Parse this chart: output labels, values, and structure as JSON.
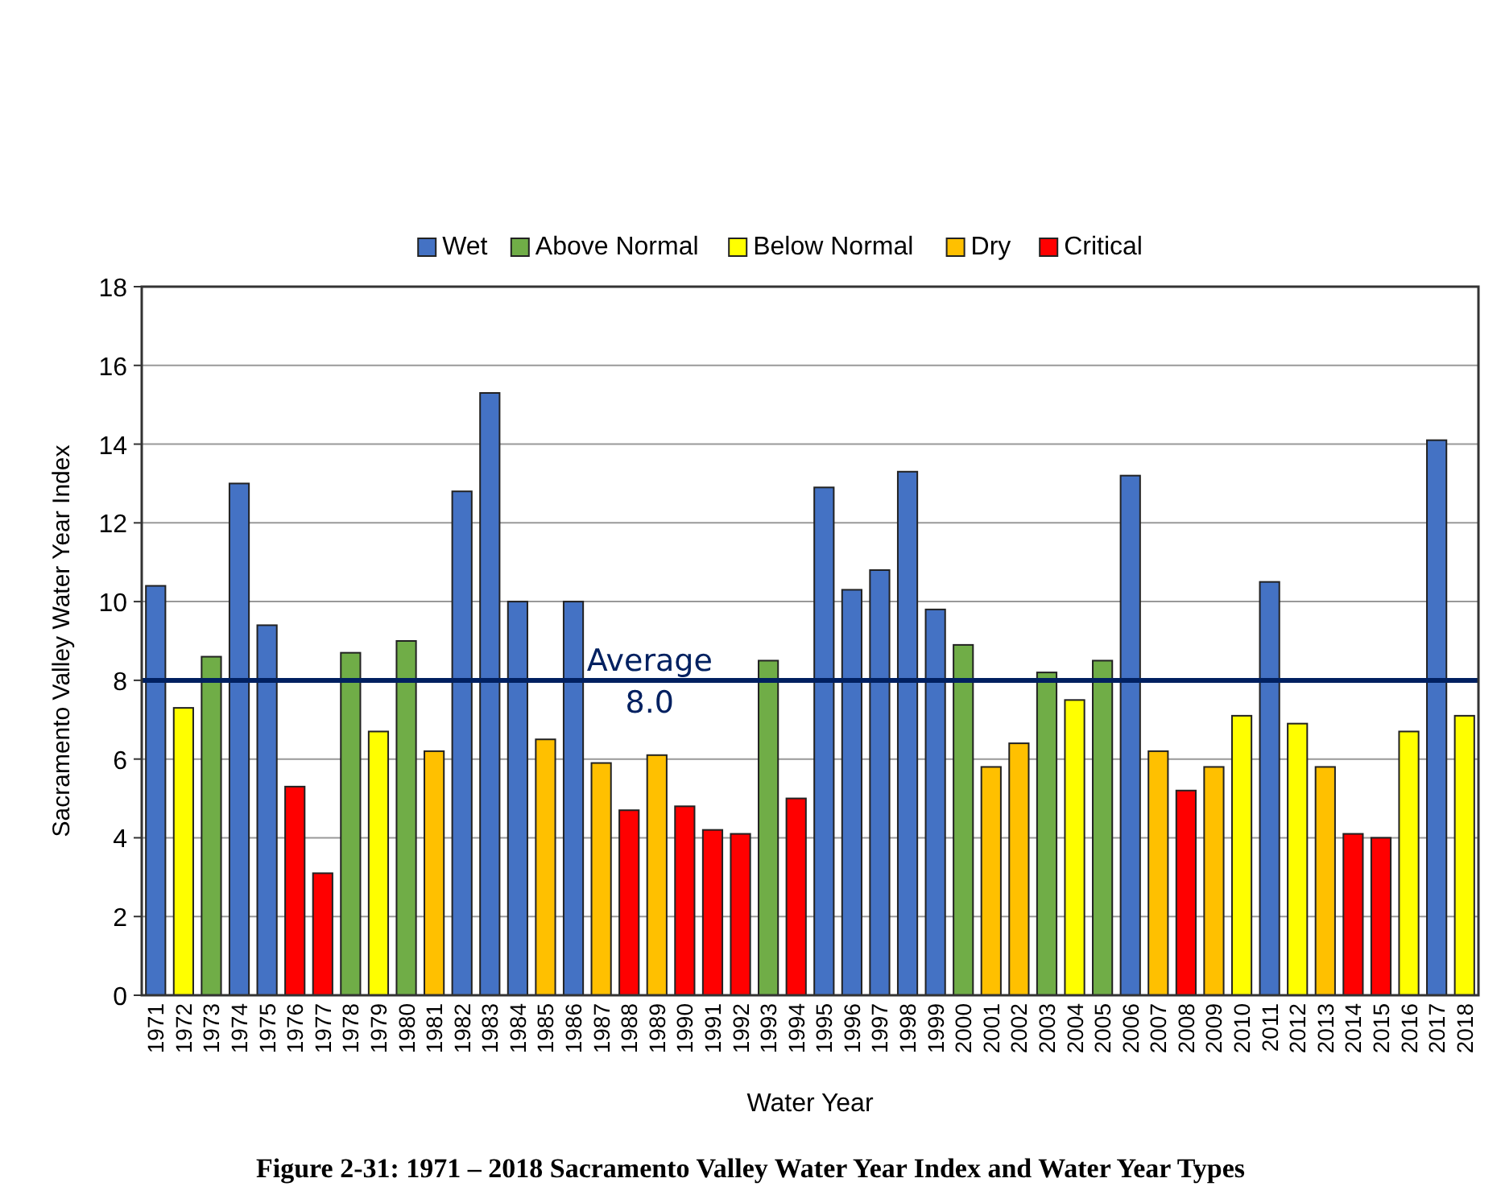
{
  "chart_data": {
    "type": "bar",
    "title": "Figure 2-31: 1971 – 2018 Sacramento Valley Water Year Index and Water Year Types",
    "xlabel": "Water Year",
    "ylabel": "Sacramento Valley Water Year Index",
    "categories": [
      "1971",
      "1972",
      "1973",
      "1974",
      "1975",
      "1976",
      "1977",
      "1978",
      "1979",
      "1980",
      "1981",
      "1982",
      "1983",
      "1984",
      "1985",
      "1986",
      "1987",
      "1988",
      "1989",
      "1990",
      "1991",
      "1992",
      "1993",
      "1994",
      "1995",
      "1996",
      "1997",
      "1998",
      "1999",
      "2000",
      "2001",
      "2002",
      "2003",
      "2004",
      "2005",
      "2006",
      "2007",
      "2008",
      "2009",
      "2010",
      "2011",
      "2012",
      "2013",
      "2014",
      "2015",
      "2016",
      "2017",
      "2018"
    ],
    "stacked": true,
    "series": [
      {
        "name": "Wet",
        "color": "#4472c4",
        "values": [
          10.4,
          null,
          null,
          13.0,
          9.4,
          null,
          null,
          null,
          null,
          null,
          null,
          12.8,
          15.3,
          10.0,
          null,
          10.0,
          null,
          null,
          null,
          null,
          null,
          null,
          null,
          null,
          12.9,
          10.3,
          10.8,
          13.3,
          9.8,
          null,
          null,
          null,
          null,
          null,
          null,
          13.2,
          null,
          null,
          null,
          null,
          10.5,
          null,
          null,
          null,
          null,
          null,
          14.1,
          null
        ]
      },
      {
        "name": "Above Normal",
        "color": "#70ad47",
        "values": [
          null,
          null,
          8.6,
          null,
          null,
          null,
          null,
          8.7,
          null,
          9.0,
          null,
          null,
          null,
          null,
          null,
          null,
          null,
          null,
          null,
          null,
          null,
          null,
          8.5,
          null,
          null,
          null,
          null,
          null,
          null,
          8.9,
          null,
          null,
          8.2,
          null,
          8.5,
          null,
          null,
          null,
          null,
          null,
          null,
          null,
          null,
          null,
          null,
          null,
          null,
          null
        ]
      },
      {
        "name": "Below Normal",
        "color": "#ffff00",
        "values": [
          null,
          7.3,
          null,
          null,
          null,
          null,
          null,
          null,
          6.7,
          null,
          null,
          null,
          null,
          null,
          null,
          null,
          null,
          null,
          null,
          null,
          null,
          null,
          null,
          null,
          null,
          null,
          null,
          null,
          null,
          null,
          null,
          null,
          null,
          7.5,
          null,
          null,
          null,
          null,
          null,
          7.1,
          null,
          6.9,
          null,
          null,
          null,
          6.7,
          null,
          7.1
        ]
      },
      {
        "name": "Dry",
        "color": "#ffc000",
        "values": [
          null,
          null,
          null,
          null,
          null,
          null,
          null,
          null,
          null,
          null,
          6.2,
          null,
          null,
          null,
          6.5,
          null,
          5.9,
          null,
          6.1,
          null,
          null,
          null,
          null,
          null,
          null,
          null,
          null,
          null,
          null,
          null,
          5.8,
          6.4,
          null,
          null,
          null,
          null,
          6.2,
          null,
          5.8,
          null,
          null,
          null,
          5.8,
          null,
          null,
          null,
          null,
          null
        ]
      },
      {
        "name": "Critical",
        "color": "#ff0000",
        "values": [
          null,
          null,
          null,
          null,
          null,
          5.3,
          3.1,
          null,
          null,
          null,
          null,
          null,
          null,
          null,
          null,
          null,
          null,
          4.7,
          null,
          4.8,
          4.2,
          4.1,
          null,
          5.0,
          null,
          null,
          null,
          null,
          null,
          null,
          null,
          null,
          null,
          null,
          null,
          null,
          null,
          5.2,
          null,
          null,
          null,
          null,
          null,
          4.1,
          4.0,
          null,
          null,
          null
        ]
      }
    ],
    "ylim": [
      0,
      18
    ],
    "yticks": [
      0,
      2,
      4,
      6,
      8,
      10,
      12,
      14,
      16,
      18
    ],
    "grid": "y",
    "legend": "top",
    "ref_lines": [
      {
        "axis": "y",
        "value": 8.0,
        "label": "Average\n8.0",
        "color": "#002060"
      }
    ]
  }
}
